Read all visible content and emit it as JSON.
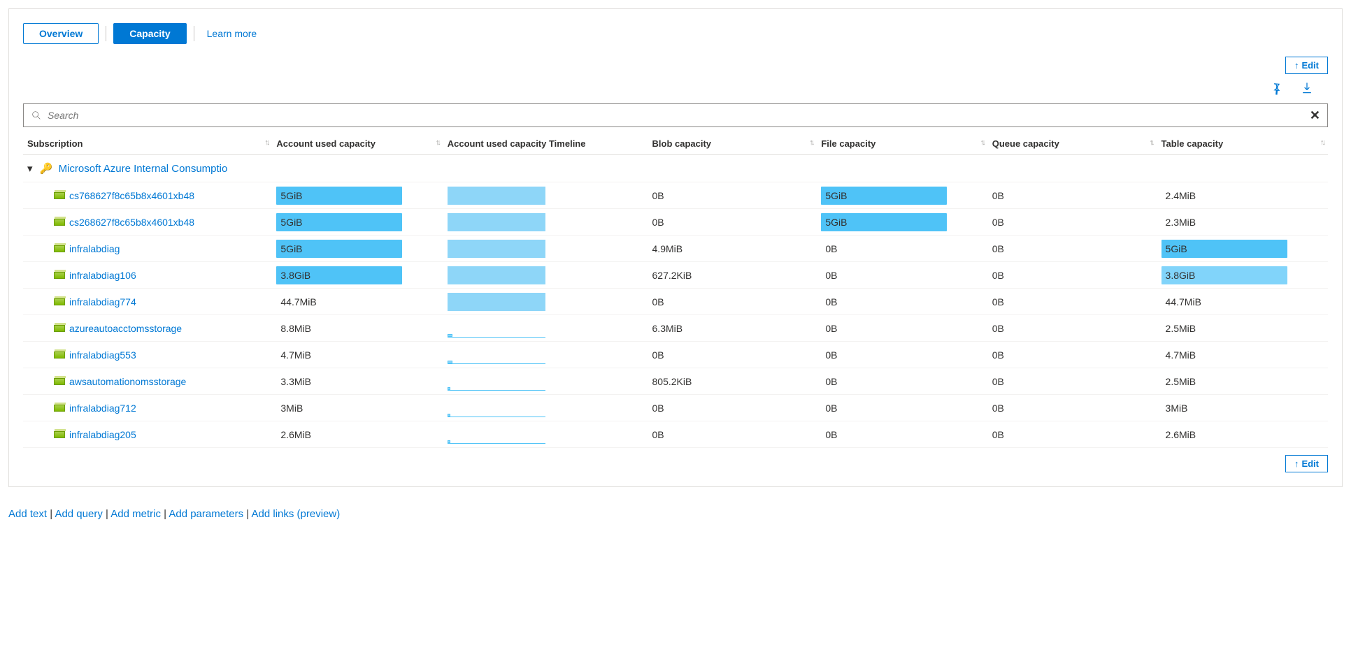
{
  "tabs": {
    "overview": "Overview",
    "capacity": "Capacity",
    "learn_more": "Learn more"
  },
  "edit_label": "Edit",
  "search": {
    "placeholder": "Search"
  },
  "columns": {
    "subscription": "Subscription",
    "used_capacity": "Account used capacity",
    "used_timeline": "Account used capacity Timeline",
    "blob": "Blob capacity",
    "file": "File capacity",
    "queue": "Queue capacity",
    "table": "Table capacity"
  },
  "group": {
    "label": "Microsoft Azure Internal Consumptio"
  },
  "colors": {
    "bar_full": "#4fc3f7",
    "bar_light": "#81d4fa",
    "tl_fill": "#8ed6f8",
    "tl_border": "#4fc3f7",
    "link": "#0078d4"
  },
  "rows": [
    {
      "name": "cs768627f8c65b8x4601xb48",
      "used": "5GiB",
      "used_fill": 100,
      "tl": 100,
      "blob": "0B",
      "file": "5GiB",
      "file_fill": 100,
      "queue": "0B",
      "table": "2.4MiB",
      "table_fill": 0
    },
    {
      "name": "cs268627f8c65b8x4601xb48",
      "used": "5GiB",
      "used_fill": 100,
      "tl": 100,
      "blob": "0B",
      "file": "5GiB",
      "file_fill": 100,
      "queue": "0B",
      "table": "2.3MiB",
      "table_fill": 0
    },
    {
      "name": "infralabdiag",
      "used": "5GiB",
      "used_fill": 100,
      "tl": 100,
      "blob": "4.9MiB",
      "file": "0B",
      "file_fill": 0,
      "queue": "0B",
      "table": "5GiB",
      "table_fill": 100
    },
    {
      "name": "infralabdiag106",
      "used": "3.8GiB",
      "used_fill": 100,
      "tl": 100,
      "blob": "627.2KiB",
      "file": "0B",
      "file_fill": 0,
      "queue": "0B",
      "table": "3.8GiB",
      "table_fill": 100,
      "table_light": true
    },
    {
      "name": "infralabdiag774",
      "used": "44.7MiB",
      "used_fill": 0,
      "tl": 90,
      "blob": "0B",
      "file": "0B",
      "file_fill": 0,
      "queue": "0B",
      "table": "44.7MiB",
      "table_fill": 0
    },
    {
      "name": "azureautoacctomsstorage",
      "used": "8.8MiB",
      "used_fill": 0,
      "tl": 5,
      "blob": "6.3MiB",
      "file": "0B",
      "file_fill": 0,
      "queue": "0B",
      "table": "2.5MiB",
      "table_fill": 0
    },
    {
      "name": "infralabdiag553",
      "used": "4.7MiB",
      "used_fill": 0,
      "tl": 5,
      "blob": "0B",
      "file": "0B",
      "file_fill": 0,
      "queue": "0B",
      "table": "4.7MiB",
      "table_fill": 0
    },
    {
      "name": "awsautomationomsstorage",
      "used": "3.3MiB",
      "used_fill": 0,
      "tl": 3,
      "blob": "805.2KiB",
      "file": "0B",
      "file_fill": 0,
      "queue": "0B",
      "table": "2.5MiB",
      "table_fill": 0
    },
    {
      "name": "infralabdiag712",
      "used": "3MiB",
      "used_fill": 0,
      "tl": 3,
      "blob": "0B",
      "file": "0B",
      "file_fill": 0,
      "queue": "0B",
      "table": "3MiB",
      "table_fill": 0
    },
    {
      "name": "infralabdiag205",
      "used": "2.6MiB",
      "used_fill": 0,
      "tl": 3,
      "blob": "0B",
      "file": "0B",
      "file_fill": 0,
      "queue": "0B",
      "table": "2.6MiB",
      "table_fill": 0
    }
  ],
  "footer": {
    "add_text": "Add text",
    "add_query": "Add query",
    "add_metric": "Add metric",
    "add_parameters": "Add parameters",
    "add_links": "Add links (preview)"
  }
}
